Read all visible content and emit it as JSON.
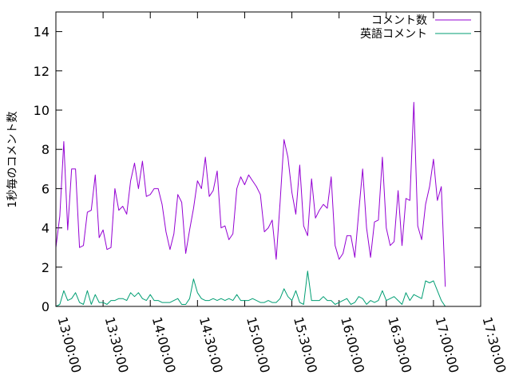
{
  "chart_data": {
    "type": "line",
    "title": "",
    "xlabel": "",
    "ylabel": "1秒毎のコメント数",
    "xlim": [
      "13:00:00",
      "17:30:00"
    ],
    "ylim": [
      0,
      15
    ],
    "x_ticks": [
      "13:00:00",
      "13:30:00",
      "14:00:00",
      "14:30:00",
      "15:00:00",
      "15:30:00",
      "16:00:00",
      "16:30:00",
      "17:00:00",
      "17:30:00"
    ],
    "y_ticks": [
      "0",
      "2",
      "4",
      "6",
      "8",
      "10",
      "12",
      "14"
    ],
    "grid": false,
    "legend_position": "top-right",
    "x_interval_minutes": 2.5,
    "x_start": "13:00:00",
    "series": [
      {
        "name": "コメント数",
        "color": "#9400d3",
        "values": [
          3.0,
          4.6,
          8.4,
          3.9,
          7.0,
          7.0,
          3.0,
          3.1,
          4.8,
          4.9,
          6.7,
          3.5,
          3.9,
          2.9,
          3.0,
          6.0,
          4.9,
          5.1,
          4.7,
          6.4,
          7.3,
          6.0,
          7.4,
          5.6,
          5.7,
          6.0,
          6.0,
          5.2,
          3.8,
          2.9,
          3.7,
          5.7,
          5.3,
          2.7,
          3.9,
          5.0,
          6.4,
          6.0,
          7.6,
          5.6,
          5.9,
          6.9,
          4.0,
          4.1,
          3.4,
          3.7,
          6.0,
          6.6,
          6.2,
          6.7,
          6.4,
          6.1,
          5.7,
          3.8,
          4.0,
          4.4,
          2.4,
          5.3,
          8.5,
          7.6,
          5.8,
          4.7,
          7.2,
          4.1,
          3.6,
          6.5,
          4.5,
          4.9,
          5.2,
          5.0,
          6.6,
          3.1,
          2.4,
          2.7,
          3.6,
          3.6,
          2.5,
          4.8,
          7.0,
          4.0,
          2.5,
          4.3,
          4.4,
          7.6,
          4.0,
          3.1,
          3.3,
          5.9,
          3.1,
          5.5,
          5.4,
          10.4,
          4.1,
          3.4,
          5.2,
          6.1,
          7.5,
          5.4,
          6.1,
          1.0
        ]
      },
      {
        "name": "英語コメント",
        "color": "#009e73",
        "values": [
          0,
          0.1,
          0.8,
          0.3,
          0.4,
          0.7,
          0.2,
          0.1,
          0.8,
          0.1,
          0.6,
          0.2,
          0.2,
          0.1,
          0.3,
          0.3,
          0.4,
          0.4,
          0.3,
          0.7,
          0.5,
          0.7,
          0.4,
          0.3,
          0.6,
          0.3,
          0.3,
          0.2,
          0.2,
          0.2,
          0.3,
          0.4,
          0.1,
          0.1,
          0.4,
          1.4,
          0.7,
          0.4,
          0.3,
          0.3,
          0.4,
          0.3,
          0.4,
          0.3,
          0.4,
          0.3,
          0.6,
          0.3,
          0.3,
          0.3,
          0.4,
          0.3,
          0.2,
          0.2,
          0.3,
          0.2,
          0.2,
          0.4,
          0.9,
          0.5,
          0.3,
          0.8,
          0.2,
          0.1,
          1.8,
          0.3,
          0.3,
          0.3,
          0.5,
          0.3,
          0.3,
          0.1,
          0.2,
          0.3,
          0.4,
          0.1,
          0.2,
          0.5,
          0.4,
          0.1,
          0.3,
          0.2,
          0.3,
          0.8,
          0.3,
          0.4,
          0.5,
          0.3,
          0.1,
          0.7,
          0.3,
          0.6,
          0.5,
          0.4,
          1.3,
          1.2,
          1.3,
          0.8,
          0.3,
          0.0
        ]
      }
    ]
  }
}
